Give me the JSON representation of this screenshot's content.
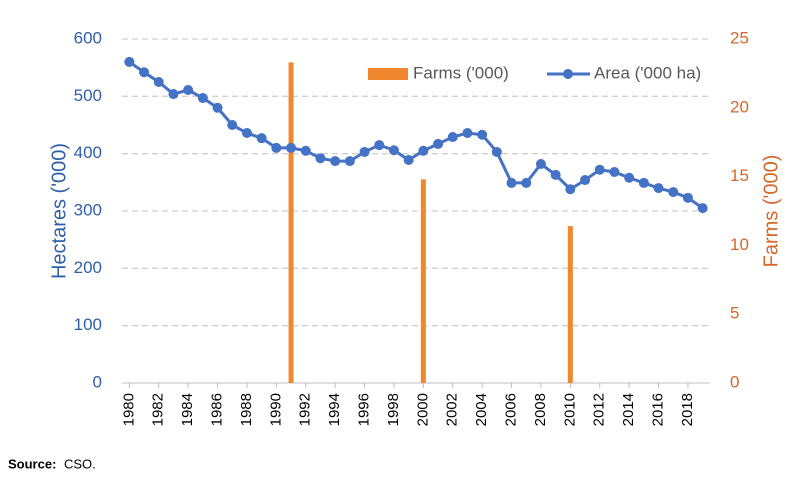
{
  "chart_data": {
    "type": "bar-line",
    "y_label": "Hectares ('000)",
    "y2_label": "Farms ('000)",
    "source_label": "Source:",
    "source": "CSO.",
    "xlim": [
      1979.5,
      2019.5
    ],
    "xticks": [
      1980,
      1982,
      1984,
      1986,
      1988,
      1990,
      1992,
      1994,
      1996,
      1998,
      2000,
      2002,
      2004,
      2006,
      2008,
      2010,
      2012,
      2014,
      2016,
      2018
    ],
    "ylim": [
      0,
      600
    ],
    "yticks": [
      0,
      100,
      200,
      300,
      400,
      500,
      600
    ],
    "y2lim": [
      0,
      25
    ],
    "y2ticks": [
      0,
      5,
      10,
      15,
      20,
      25
    ],
    "grid": true,
    "legend": "top",
    "series": [
      {
        "name": "Farms ('000)",
        "type": "bar",
        "axis": "y2",
        "color": "#f0882f",
        "x": [
          1991,
          2000,
          2010
        ],
        "values": [
          23.3,
          14.8,
          11.4
        ]
      },
      {
        "name": "Area ('000 ha)",
        "type": "line",
        "color": "#4472c4",
        "x": [
          1980,
          1981,
          1982,
          1983,
          1984,
          1985,
          1986,
          1987,
          1988,
          1989,
          1990,
          1991,
          1992,
          1993,
          1994,
          1995,
          1996,
          1997,
          1998,
          1999,
          2000,
          2001,
          2002,
          2003,
          2004,
          2005,
          2006,
          2007,
          2008,
          2009,
          2010,
          2011,
          2012,
          2013,
          2014,
          2015,
          2016,
          2017,
          2018,
          2019
        ],
        "values": [
          560,
          542,
          525,
          504,
          511,
          497,
          480,
          450,
          436,
          427,
          410,
          410,
          405,
          392,
          387,
          387,
          403,
          415,
          406,
          389,
          405,
          417,
          429,
          436,
          433,
          403,
          349,
          349,
          382,
          363,
          338,
          354,
          372,
          368,
          358,
          349,
          340,
          333,
          323,
          305
        ]
      }
    ]
  }
}
